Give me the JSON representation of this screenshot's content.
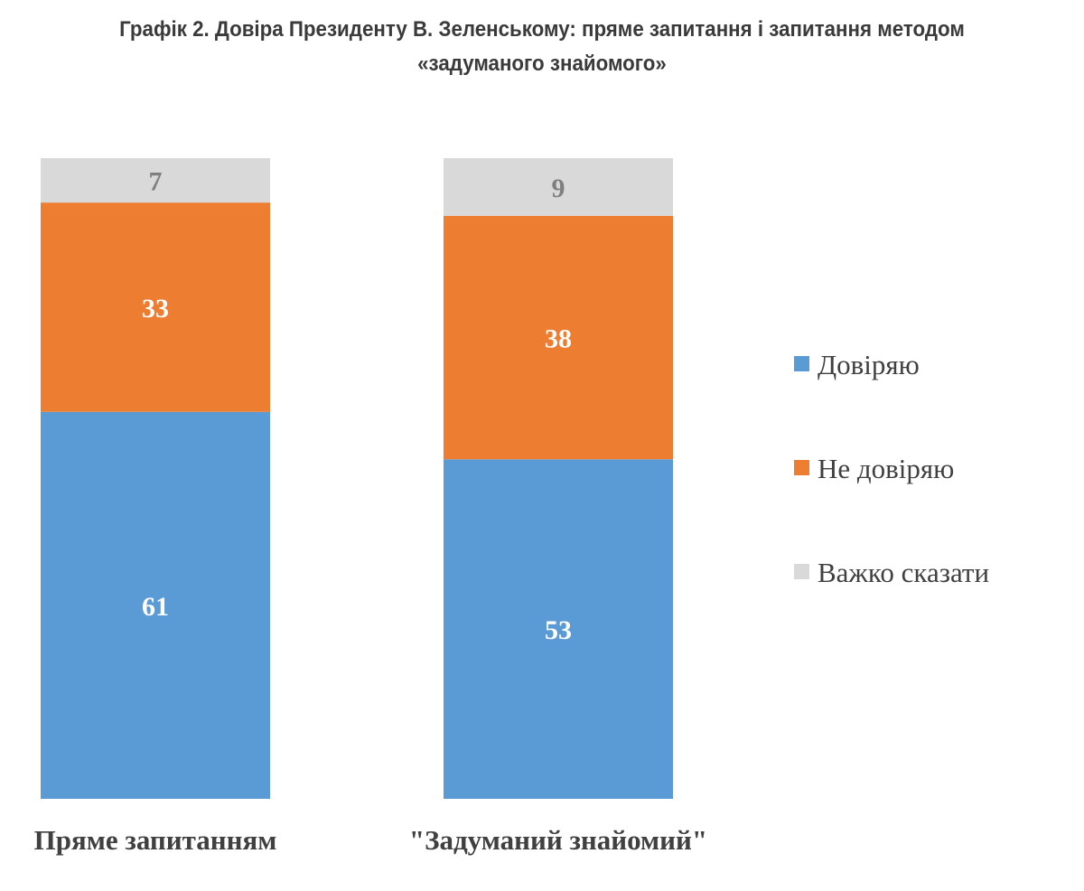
{
  "chart_data": {
    "type": "bar",
    "stacked": true,
    "title_line1": "Графік 2. Довіра Президенту В. Зеленському: пряме запитання і запитання методом",
    "title_line2": "«задуманого знайомого»",
    "categories": [
      "Пряме запитанням",
      "\"Задуманий знайомий\""
    ],
    "series": [
      {
        "name": "Довіряю",
        "values": [
          61,
          53
        ],
        "color": "#5B9BD5",
        "label_color": "#ffffff"
      },
      {
        "name": "Не довіряю",
        "values": [
          33,
          38
        ],
        "color": "#ED7D31",
        "label_color": "#ffffff"
      },
      {
        "name": "Важко сказати",
        "values": [
          7,
          9
        ],
        "color": "#D9D9D9",
        "label_color": "#7F7F7F"
      }
    ],
    "xlabel": "",
    "ylabel": "",
    "grid": false,
    "legend_position": "right"
  }
}
